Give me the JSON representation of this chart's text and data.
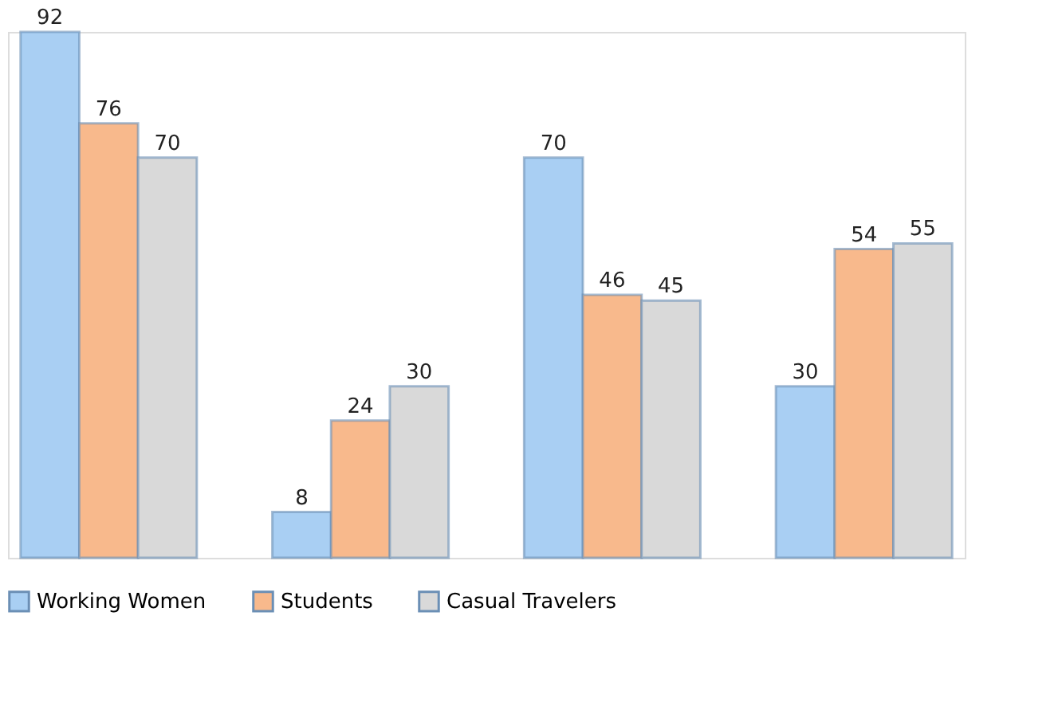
{
  "chart_data": {
    "type": "bar",
    "categories": [
      null,
      null,
      null,
      null
    ],
    "series": [
      {
        "name": "Working Women",
        "color": "#a9cff3",
        "values": [
          92,
          8,
          70,
          30
        ]
      },
      {
        "name": "Students",
        "color": "#f8b98c",
        "values": [
          76,
          24,
          46,
          54
        ]
      },
      {
        "name": "Casual Travelers",
        "color": "#d9d9d9",
        "values": [
          70,
          30,
          45,
          55
        ]
      }
    ],
    "data_labels": true,
    "legend": "bottom",
    "grid": false
  }
}
